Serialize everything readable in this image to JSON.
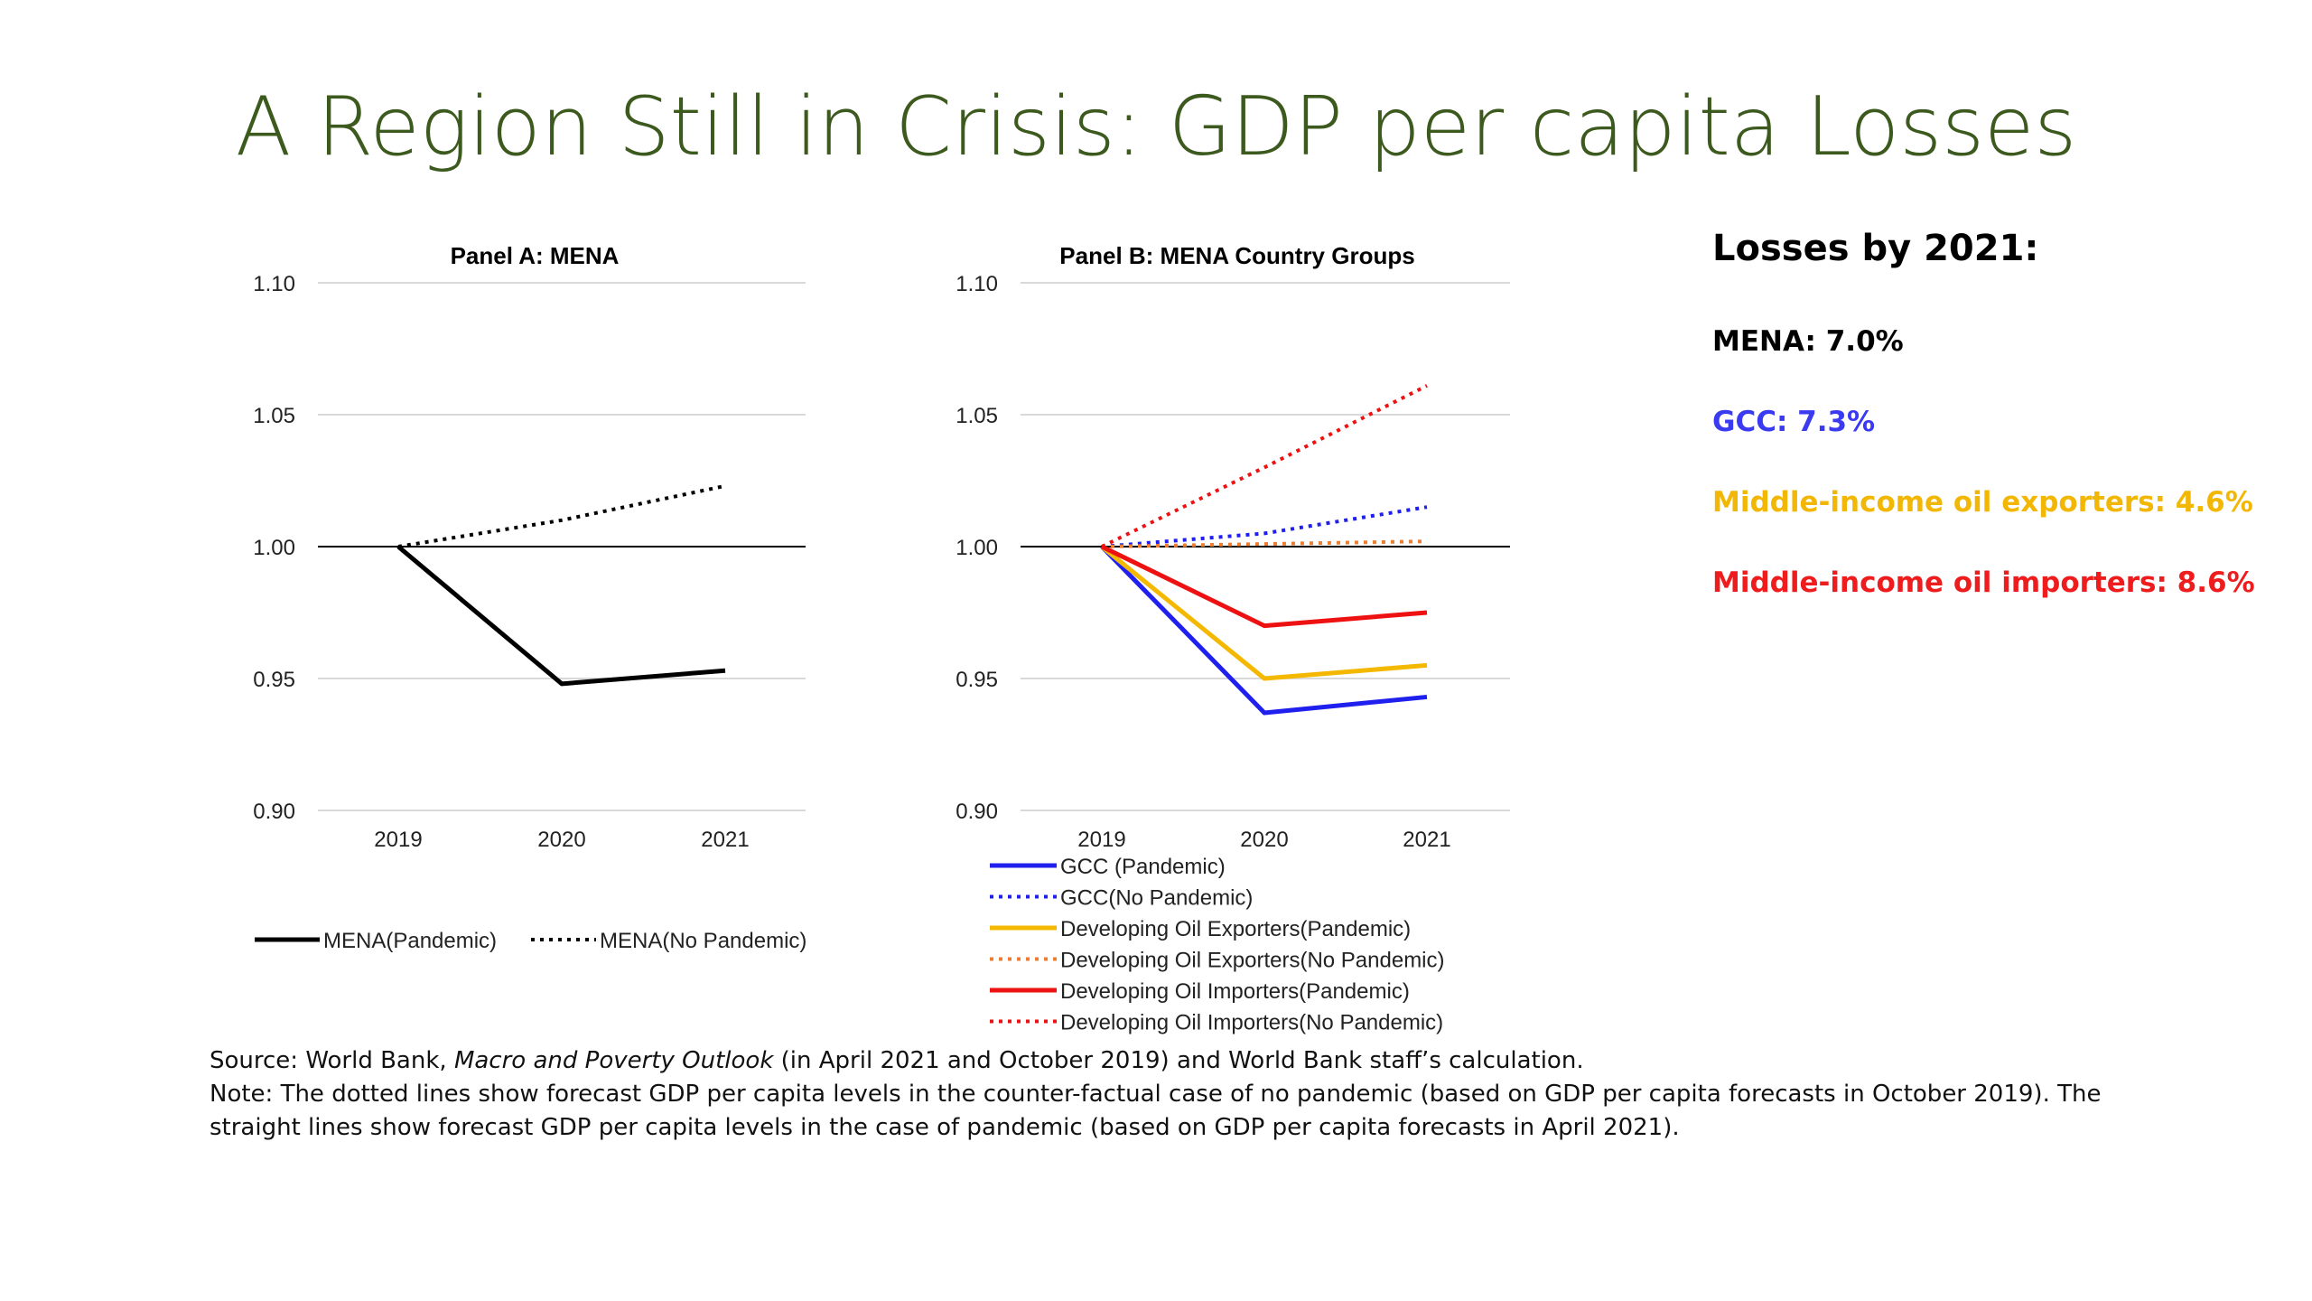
{
  "slide": {
    "title": "A Region Still in Crisis: GDP per capita Losses"
  },
  "losses": {
    "title": "Losses by 2021:",
    "items": [
      {
        "text": "MENA: 7.0%",
        "color": "#000000"
      },
      {
        "text": "GCC: 7.3%",
        "color": "#3a3af0"
      },
      {
        "text": "Middle-income oil exporters: 4.6%",
        "color": "#f2b705"
      },
      {
        "text": "Middle-income oil importers: 8.6%",
        "color": "#ee1c1c"
      }
    ]
  },
  "notes": {
    "source_prefix": "Source: World Bank, ",
    "source_italic": "Macro and Poverty Outlook",
    "source_suffix": " (in April 2021 and October 2019) and World Bank staff’s calculation.",
    "note": "Note: The dotted lines show forecast GDP per capita levels in the counter-factual case of no pandemic (based on GDP per capita forecasts in October 2019). The straight lines show forecast GDP per capita levels in the case of pandemic (based on GDP per capita forecasts in April 2021)."
  },
  "chart_data": [
    {
      "type": "line",
      "title": "Panel A: MENA",
      "x": [
        "2019",
        "2020",
        "2021"
      ],
      "ylim": [
        0.9,
        1.1
      ],
      "yticks": [
        "0.90",
        "0.95",
        "1.00",
        "1.05",
        "1.10"
      ],
      "grid": true,
      "legend_position": "bottom",
      "series": [
        {
          "name": "MENA(Pandemic)",
          "values": [
            1.0,
            0.948,
            0.953
          ],
          "color": "#000000",
          "style": "solid"
        },
        {
          "name": "MENA(No Pandemic)",
          "values": [
            1.0,
            1.01,
            1.023
          ],
          "color": "#000000",
          "style": "dotted"
        }
      ]
    },
    {
      "type": "line",
      "title": "Panel B: MENA Country Groups",
      "x": [
        "2019",
        "2020",
        "2021"
      ],
      "ylim": [
        0.9,
        1.1
      ],
      "yticks": [
        "0.90",
        "0.95",
        "1.00",
        "1.05",
        "1.10"
      ],
      "grid": true,
      "legend_position": "bottom",
      "series": [
        {
          "name": "GCC (Pandemic)",
          "values": [
            1.0,
            0.937,
            0.943
          ],
          "color": "#1f1fee",
          "style": "solid"
        },
        {
          "name": "GCC(No Pandemic)",
          "values": [
            1.0,
            1.005,
            1.015
          ],
          "color": "#1f1fee",
          "style": "dotted"
        },
        {
          "name": "Developing Oil Exporters(Pandemic)",
          "values": [
            1.0,
            0.95,
            0.955
          ],
          "color": "#f5b800",
          "style": "solid"
        },
        {
          "name": "Developing Oil Exporters(No Pandemic)",
          "values": [
            1.0,
            1.001,
            1.002
          ],
          "color": "#ed7d31",
          "style": "dotted"
        },
        {
          "name": "Developing Oil Importers(Pandemic)",
          "values": [
            1.0,
            0.97,
            0.975
          ],
          "color": "#ee1111",
          "style": "solid"
        },
        {
          "name": "Developing Oil Importers(No Pandemic)",
          "values": [
            1.0,
            1.03,
            1.061
          ],
          "color": "#ee1111",
          "style": "dotted"
        }
      ]
    }
  ]
}
